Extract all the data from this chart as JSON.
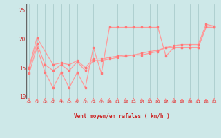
{
  "xlabel": "Vent moyen/en rafales ( km/h )",
  "background_color": "#cde8e8",
  "grid_color": "#aacccc",
  "line_color": "#ff9999",
  "marker_color": "#ff7777",
  "axis_color": "#cc2222",
  "x_ticks": [
    0,
    1,
    2,
    3,
    4,
    5,
    6,
    7,
    8,
    9,
    10,
    11,
    12,
    13,
    14,
    15,
    16,
    17,
    18,
    19,
    20,
    21,
    22,
    23
  ],
  "ylim": [
    9.5,
    26.0
  ],
  "xlim": [
    -0.3,
    23.3
  ],
  "yticks": [
    10,
    15,
    20,
    25
  ],
  "line1_x": [
    0,
    1,
    2,
    3,
    4,
    5,
    6,
    7,
    8,
    9,
    10,
    11,
    12,
    13,
    14,
    15,
    16,
    17,
    18,
    19,
    20,
    21,
    22,
    23
  ],
  "line1_y": [
    14.0,
    18.5,
    14.2,
    11.5,
    14.2,
    11.5,
    14.2,
    11.5,
    18.5,
    14.0,
    22.0,
    22.0,
    22.0,
    22.0,
    22.0,
    22.0,
    22.0,
    17.0,
    18.5,
    18.5,
    18.5,
    18.5,
    22.0,
    22.0
  ],
  "line2_x": [
    0,
    1,
    2,
    3,
    4,
    5,
    6,
    7,
    8,
    9,
    10,
    11,
    12,
    13,
    14,
    15,
    16,
    17,
    18,
    19,
    20,
    21,
    22,
    23
  ],
  "line2_y": [
    14.8,
    19.2,
    15.5,
    14.5,
    15.5,
    14.5,
    16.0,
    14.5,
    16.2,
    16.2,
    16.5,
    16.8,
    17.0,
    17.2,
    17.2,
    17.5,
    17.8,
    18.5,
    18.5,
    18.5,
    18.5,
    18.5,
    22.0,
    22.0
  ],
  "line3_x": [
    0,
    1,
    3,
    4,
    5,
    6,
    7,
    8,
    9,
    10,
    11,
    12,
    13,
    14,
    15,
    16,
    17,
    18,
    19,
    20,
    21,
    22,
    23
  ],
  "line3_y": [
    15.0,
    20.2,
    15.5,
    15.8,
    15.5,
    16.2,
    15.0,
    16.5,
    16.5,
    16.8,
    17.0,
    17.2,
    17.2,
    17.5,
    17.8,
    18.0,
    18.5,
    18.8,
    19.0,
    19.0,
    19.0,
    22.5,
    22.2
  ]
}
